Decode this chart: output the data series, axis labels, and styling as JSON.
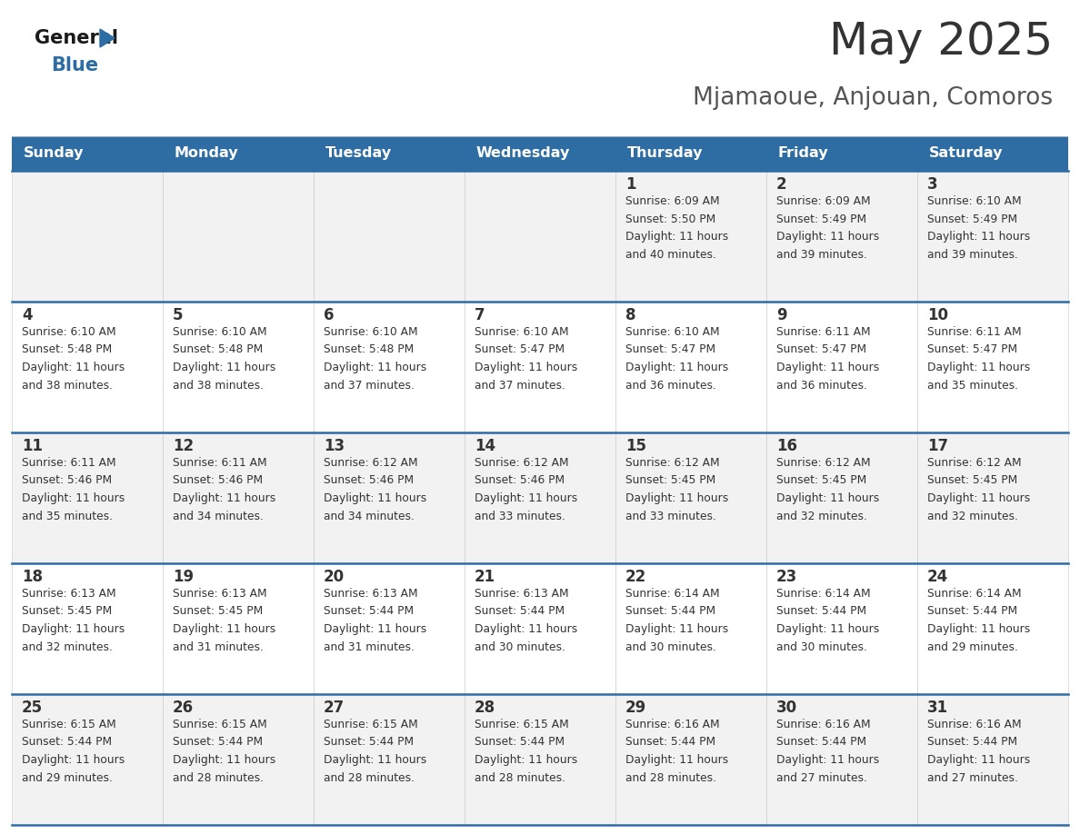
{
  "title": "May 2025",
  "subtitle": "Mjamaoue, Anjouan, Comoros",
  "days_of_week": [
    "Sunday",
    "Monday",
    "Tuesday",
    "Wednesday",
    "Thursday",
    "Friday",
    "Saturday"
  ],
  "header_bg": "#2E6DA4",
  "header_text": "#FFFFFF",
  "row_bg_odd": "#F2F2F2",
  "row_bg_even": "#FFFFFF",
  "cell_text_color": "#333333",
  "day_num_color": "#333333",
  "border_color": "#2E6DA4",
  "title_color": "#333333",
  "subtitle_color": "#555555",
  "calendar": [
    [
      {
        "day": null,
        "sunrise": null,
        "sunset": null,
        "daylight": null
      },
      {
        "day": null,
        "sunrise": null,
        "sunset": null,
        "daylight": null
      },
      {
        "day": null,
        "sunrise": null,
        "sunset": null,
        "daylight": null
      },
      {
        "day": null,
        "sunrise": null,
        "sunset": null,
        "daylight": null
      },
      {
        "day": 1,
        "sunrise": "6:09 AM",
        "sunset": "5:50 PM",
        "daylight": "11 hours\nand 40 minutes."
      },
      {
        "day": 2,
        "sunrise": "6:09 AM",
        "sunset": "5:49 PM",
        "daylight": "11 hours\nand 39 minutes."
      },
      {
        "day": 3,
        "sunrise": "6:10 AM",
        "sunset": "5:49 PM",
        "daylight": "11 hours\nand 39 minutes."
      }
    ],
    [
      {
        "day": 4,
        "sunrise": "6:10 AM",
        "sunset": "5:48 PM",
        "daylight": "11 hours\nand 38 minutes."
      },
      {
        "day": 5,
        "sunrise": "6:10 AM",
        "sunset": "5:48 PM",
        "daylight": "11 hours\nand 38 minutes."
      },
      {
        "day": 6,
        "sunrise": "6:10 AM",
        "sunset": "5:48 PM",
        "daylight": "11 hours\nand 37 minutes."
      },
      {
        "day": 7,
        "sunrise": "6:10 AM",
        "sunset": "5:47 PM",
        "daylight": "11 hours\nand 37 minutes."
      },
      {
        "day": 8,
        "sunrise": "6:10 AM",
        "sunset": "5:47 PM",
        "daylight": "11 hours\nand 36 minutes."
      },
      {
        "day": 9,
        "sunrise": "6:11 AM",
        "sunset": "5:47 PM",
        "daylight": "11 hours\nand 36 minutes."
      },
      {
        "day": 10,
        "sunrise": "6:11 AM",
        "sunset": "5:47 PM",
        "daylight": "11 hours\nand 35 minutes."
      }
    ],
    [
      {
        "day": 11,
        "sunrise": "6:11 AM",
        "sunset": "5:46 PM",
        "daylight": "11 hours\nand 35 minutes."
      },
      {
        "day": 12,
        "sunrise": "6:11 AM",
        "sunset": "5:46 PM",
        "daylight": "11 hours\nand 34 minutes."
      },
      {
        "day": 13,
        "sunrise": "6:12 AM",
        "sunset": "5:46 PM",
        "daylight": "11 hours\nand 34 minutes."
      },
      {
        "day": 14,
        "sunrise": "6:12 AM",
        "sunset": "5:46 PM",
        "daylight": "11 hours\nand 33 minutes."
      },
      {
        "day": 15,
        "sunrise": "6:12 AM",
        "sunset": "5:45 PM",
        "daylight": "11 hours\nand 33 minutes."
      },
      {
        "day": 16,
        "sunrise": "6:12 AM",
        "sunset": "5:45 PM",
        "daylight": "11 hours\nand 32 minutes."
      },
      {
        "day": 17,
        "sunrise": "6:12 AM",
        "sunset": "5:45 PM",
        "daylight": "11 hours\nand 32 minutes."
      }
    ],
    [
      {
        "day": 18,
        "sunrise": "6:13 AM",
        "sunset": "5:45 PM",
        "daylight": "11 hours\nand 32 minutes."
      },
      {
        "day": 19,
        "sunrise": "6:13 AM",
        "sunset": "5:45 PM",
        "daylight": "11 hours\nand 31 minutes."
      },
      {
        "day": 20,
        "sunrise": "6:13 AM",
        "sunset": "5:44 PM",
        "daylight": "11 hours\nand 31 minutes."
      },
      {
        "day": 21,
        "sunrise": "6:13 AM",
        "sunset": "5:44 PM",
        "daylight": "11 hours\nand 30 minutes."
      },
      {
        "day": 22,
        "sunrise": "6:14 AM",
        "sunset": "5:44 PM",
        "daylight": "11 hours\nand 30 minutes."
      },
      {
        "day": 23,
        "sunrise": "6:14 AM",
        "sunset": "5:44 PM",
        "daylight": "11 hours\nand 30 minutes."
      },
      {
        "day": 24,
        "sunrise": "6:14 AM",
        "sunset": "5:44 PM",
        "daylight": "11 hours\nand 29 minutes."
      }
    ],
    [
      {
        "day": 25,
        "sunrise": "6:15 AM",
        "sunset": "5:44 PM",
        "daylight": "11 hours\nand 29 minutes."
      },
      {
        "day": 26,
        "sunrise": "6:15 AM",
        "sunset": "5:44 PM",
        "daylight": "11 hours\nand 28 minutes."
      },
      {
        "day": 27,
        "sunrise": "6:15 AM",
        "sunset": "5:44 PM",
        "daylight": "11 hours\nand 28 minutes."
      },
      {
        "day": 28,
        "sunrise": "6:15 AM",
        "sunset": "5:44 PM",
        "daylight": "11 hours\nand 28 minutes."
      },
      {
        "day": 29,
        "sunrise": "6:16 AM",
        "sunset": "5:44 PM",
        "daylight": "11 hours\nand 28 minutes."
      },
      {
        "day": 30,
        "sunrise": "6:16 AM",
        "sunset": "5:44 PM",
        "daylight": "11 hours\nand 27 minutes."
      },
      {
        "day": 31,
        "sunrise": "6:16 AM",
        "sunset": "5:44 PM",
        "daylight": "11 hours\nand 27 minutes."
      }
    ]
  ]
}
